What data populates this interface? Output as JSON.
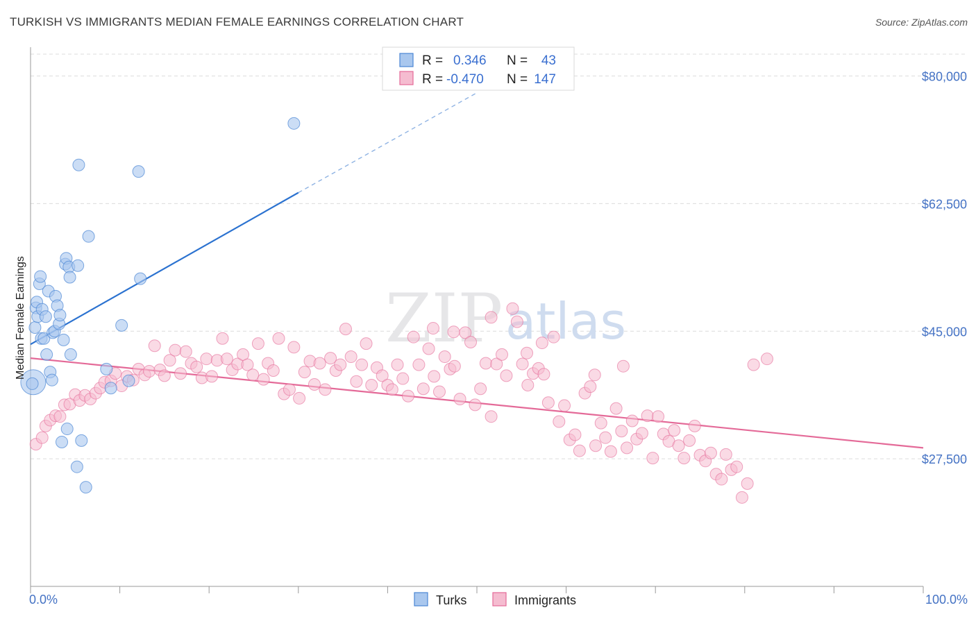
{
  "title": "TURKISH VS IMMIGRANTS MEDIAN FEMALE EARNINGS CORRELATION CHART",
  "source": "Source: ZipAtlas.com",
  "colors": {
    "turks": "#4a86d4",
    "turks_fill": "#a9c7ee",
    "immigrants": "#e46a98",
    "immigrants_fill": "#f5bcd0",
    "axis_text": "#4472c4",
    "grid": "#dcdcdc"
  },
  "legend": {
    "r_label": "R =",
    "n_label": "N =",
    "turks": {
      "r": "0.346",
      "n": "43"
    },
    "immigrants": {
      "r": "-0.470",
      "n": "147"
    }
  },
  "bottom_legend": {
    "turks": "Turks",
    "immigrants": "Immigrants"
  },
  "watermark": {
    "zip": "ZIP",
    "atlas": "atlas"
  },
  "chart_data": {
    "type": "scatter",
    "title": "TURKISH VS IMMIGRANTS MEDIAN FEMALE EARNINGS CORRELATION CHART",
    "xlabel": "",
    "ylabel": "Median Female Earnings",
    "xlim": [
      0,
      100
    ],
    "ylim": [
      10000,
      83000
    ],
    "x_ticks": [
      "0.0%",
      "100.0%"
    ],
    "y_ticks": [
      {
        "value": 27500,
        "label": "$27,500"
      },
      {
        "value": 45000,
        "label": "$45,000"
      },
      {
        "value": 62500,
        "label": "$62,500"
      },
      {
        "value": 80000,
        "label": "$80,000"
      }
    ],
    "series": [
      {
        "name": "Turks",
        "trend": {
          "x0": 0,
          "y0": 43200,
          "x1": 30,
          "y1": 64000,
          "dashed_to_x": 50,
          "dashed_to_y": 77700
        },
        "points": [
          [
            0.3,
            38000
          ],
          [
            0.5,
            45500
          ],
          [
            0.6,
            48200
          ],
          [
            0.7,
            49000
          ],
          [
            0.8,
            47000
          ],
          [
            1.0,
            51500
          ],
          [
            1.1,
            52500
          ],
          [
            1.2,
            44000
          ],
          [
            1.3,
            48000
          ],
          [
            1.5,
            44000
          ],
          [
            1.7,
            47000
          ],
          [
            1.8,
            41800
          ],
          [
            2.0,
            50500
          ],
          [
            2.2,
            39400
          ],
          [
            2.4,
            38300
          ],
          [
            2.5,
            44800
          ],
          [
            2.7,
            45000
          ],
          [
            2.8,
            49800
          ],
          [
            3.0,
            48500
          ],
          [
            3.2,
            46000
          ],
          [
            3.3,
            47200
          ],
          [
            3.5,
            29800
          ],
          [
            3.7,
            43800
          ],
          [
            3.9,
            54200
          ],
          [
            4.0,
            55000
          ],
          [
            4.1,
            31600
          ],
          [
            4.3,
            53800
          ],
          [
            4.4,
            52400
          ],
          [
            4.5,
            41800
          ],
          [
            5.2,
            26400
          ],
          [
            5.3,
            54000
          ],
          [
            5.4,
            67800
          ],
          [
            5.7,
            30000
          ],
          [
            6.2,
            23600
          ],
          [
            6.5,
            58000
          ],
          [
            8.5,
            39800
          ],
          [
            9.0,
            37200
          ],
          [
            10.2,
            45800
          ],
          [
            11.0,
            38200
          ],
          [
            12.1,
            66900
          ],
          [
            12.3,
            52200
          ],
          [
            29.5,
            73500
          ],
          [
            0.2,
            37800
          ]
        ]
      },
      {
        "name": "Immigrants",
        "trend": {
          "x0": 0,
          "y0": 41300,
          "x1": 100,
          "y1": 29000
        },
        "points": [
          [
            0.6,
            29500
          ],
          [
            1.3,
            30400
          ],
          [
            1.7,
            32000
          ],
          [
            2.2,
            32800
          ],
          [
            2.8,
            33400
          ],
          [
            3.3,
            33300
          ],
          [
            3.8,
            34900
          ],
          [
            4.4,
            35000
          ],
          [
            5.0,
            36300
          ],
          [
            5.5,
            35500
          ],
          [
            6.1,
            36200
          ],
          [
            6.7,
            35700
          ],
          [
            7.3,
            36500
          ],
          [
            7.8,
            37200
          ],
          [
            8.3,
            38000
          ],
          [
            9.0,
            38200
          ],
          [
            9.5,
            39200
          ],
          [
            10.2,
            37500
          ],
          [
            10.8,
            38800
          ],
          [
            11.5,
            38300
          ],
          [
            12.1,
            39800
          ],
          [
            12.8,
            39000
          ],
          [
            13.3,
            39500
          ],
          [
            13.9,
            43000
          ],
          [
            14.5,
            39700
          ],
          [
            15.0,
            38900
          ],
          [
            15.6,
            41000
          ],
          [
            16.2,
            42400
          ],
          [
            16.8,
            39200
          ],
          [
            17.4,
            42200
          ],
          [
            18.0,
            40600
          ],
          [
            18.6,
            40100
          ],
          [
            19.2,
            38600
          ],
          [
            19.7,
            41200
          ],
          [
            20.3,
            38800
          ],
          [
            20.9,
            41000
          ],
          [
            21.5,
            44000
          ],
          [
            22.0,
            41200
          ],
          [
            22.6,
            39700
          ],
          [
            23.2,
            40500
          ],
          [
            23.8,
            41800
          ],
          [
            24.3,
            40400
          ],
          [
            24.9,
            39000
          ],
          [
            25.5,
            43300
          ],
          [
            26.1,
            38400
          ],
          [
            26.6,
            40600
          ],
          [
            27.2,
            39600
          ],
          [
            27.8,
            44000
          ],
          [
            28.4,
            36400
          ],
          [
            29.0,
            37000
          ],
          [
            29.5,
            42800
          ],
          [
            30.1,
            35800
          ],
          [
            30.7,
            39400
          ],
          [
            31.3,
            40900
          ],
          [
            31.8,
            37700
          ],
          [
            32.4,
            40600
          ],
          [
            33.0,
            37000
          ],
          [
            33.6,
            41300
          ],
          [
            34.2,
            39600
          ],
          [
            34.7,
            40400
          ],
          [
            35.3,
            45300
          ],
          [
            35.9,
            41500
          ],
          [
            36.5,
            38100
          ],
          [
            37.1,
            40400
          ],
          [
            37.6,
            43300
          ],
          [
            38.2,
            37600
          ],
          [
            38.8,
            40000
          ],
          [
            39.4,
            38900
          ],
          [
            40.0,
            37600
          ],
          [
            40.5,
            37000
          ],
          [
            41.1,
            40400
          ],
          [
            41.7,
            38500
          ],
          [
            42.3,
            36100
          ],
          [
            42.9,
            44200
          ],
          [
            43.5,
            40400
          ],
          [
            44.0,
            37100
          ],
          [
            44.6,
            42600
          ],
          [
            45.2,
            38800
          ],
          [
            45.8,
            36700
          ],
          [
            46.4,
            41500
          ],
          [
            47.0,
            39800
          ],
          [
            47.5,
            40200
          ],
          [
            48.1,
            35700
          ],
          [
            48.7,
            44800
          ],
          [
            49.3,
            43500
          ],
          [
            49.8,
            34900
          ],
          [
            50.4,
            37100
          ],
          [
            51.0,
            40600
          ],
          [
            51.6,
            33300
          ],
          [
            52.2,
            40500
          ],
          [
            52.8,
            41800
          ],
          [
            53.3,
            38900
          ],
          [
            54.0,
            48100
          ],
          [
            54.5,
            46300
          ],
          [
            55.1,
            40500
          ],
          [
            55.7,
            37600
          ],
          [
            56.3,
            39200
          ],
          [
            56.9,
            39900
          ],
          [
            57.5,
            39100
          ],
          [
            58.0,
            35200
          ],
          [
            58.6,
            44200
          ],
          [
            59.2,
            32600
          ],
          [
            59.8,
            34800
          ],
          [
            60.4,
            30100
          ],
          [
            61.0,
            30800
          ],
          [
            61.5,
            28600
          ],
          [
            62.1,
            36500
          ],
          [
            62.7,
            37400
          ],
          [
            63.3,
            29300
          ],
          [
            63.9,
            32400
          ],
          [
            64.4,
            30400
          ],
          [
            65.0,
            28500
          ],
          [
            65.6,
            34400
          ],
          [
            66.2,
            31300
          ],
          [
            66.8,
            29000
          ],
          [
            67.4,
            32700
          ],
          [
            67.9,
            30200
          ],
          [
            68.5,
            31000
          ],
          [
            69.1,
            33400
          ],
          [
            69.7,
            27600
          ],
          [
            70.3,
            33300
          ],
          [
            70.9,
            30900
          ],
          [
            71.5,
            29900
          ],
          [
            72.1,
            31400
          ],
          [
            72.6,
            29300
          ],
          [
            73.2,
            27600
          ],
          [
            73.8,
            30000
          ],
          [
            74.4,
            32000
          ],
          [
            75.0,
            28000
          ],
          [
            75.6,
            27200
          ],
          [
            76.2,
            28300
          ],
          [
            76.8,
            25400
          ],
          [
            77.4,
            24700
          ],
          [
            77.9,
            28100
          ],
          [
            78.5,
            26000
          ],
          [
            79.1,
            26400
          ],
          [
            79.7,
            22200
          ],
          [
            80.3,
            24100
          ],
          [
            81.0,
            40400
          ],
          [
            82.5,
            41200
          ],
          [
            55.6,
            42000
          ],
          [
            57.3,
            43400
          ],
          [
            47.4,
            44900
          ],
          [
            45.1,
            45400
          ],
          [
            51.6,
            46900
          ],
          [
            63.2,
            39000
          ],
          [
            66.4,
            40200
          ]
        ]
      }
    ]
  }
}
